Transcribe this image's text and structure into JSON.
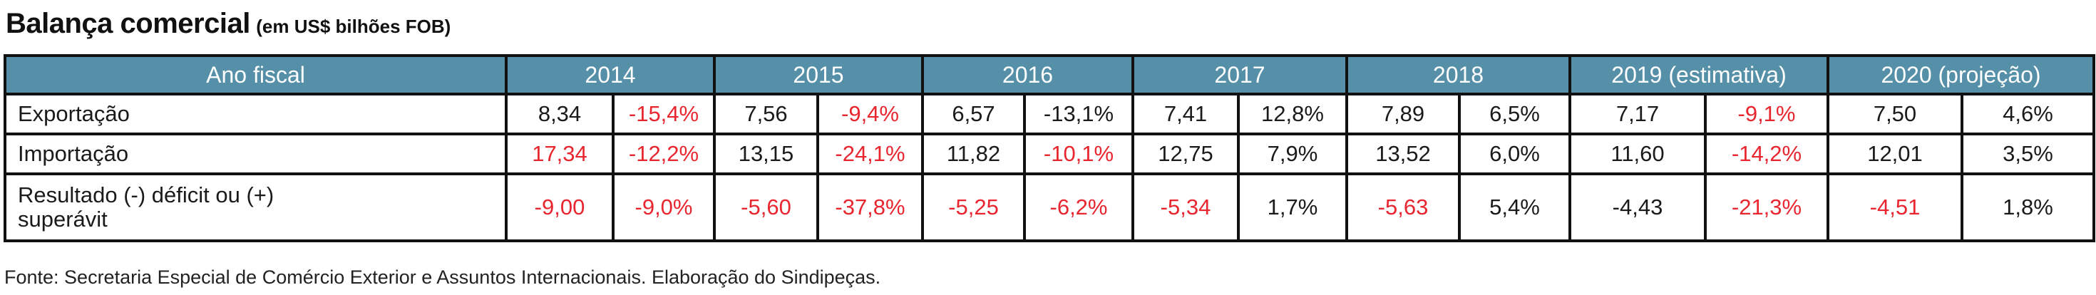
{
  "title": {
    "main": "Balança comercial",
    "sub": "(em US$ bilhões FOB)"
  },
  "table": {
    "header_label": "Ano fiscal",
    "years": [
      "2014",
      "2015",
      "2016",
      "2017",
      "2018",
      "2019 (estimativa)",
      "2020 (projeção)"
    ],
    "rows": [
      {
        "label": "Exportação",
        "cells": [
          {
            "value": "8,34",
            "neg": false
          },
          {
            "value": "-15,4%",
            "neg": true
          },
          {
            "value": "7,56",
            "neg": false
          },
          {
            "value": "-9,4%",
            "neg": true
          },
          {
            "value": "6,57",
            "neg": false
          },
          {
            "value": "-13,1%",
            "neg": false
          },
          {
            "value": "7,41",
            "neg": false
          },
          {
            "value": "12,8%",
            "neg": false
          },
          {
            "value": "7,89",
            "neg": false
          },
          {
            "value": "6,5%",
            "neg": false
          },
          {
            "value": "7,17",
            "neg": false
          },
          {
            "value": "-9,1%",
            "neg": true
          },
          {
            "value": "7,50",
            "neg": false
          },
          {
            "value": "4,6%",
            "neg": false
          }
        ]
      },
      {
        "label": "Importação",
        "cells": [
          {
            "value": "17,34",
            "neg": true
          },
          {
            "value": "-12,2%",
            "neg": true
          },
          {
            "value": "13,15",
            "neg": false
          },
          {
            "value": "-24,1%",
            "neg": true
          },
          {
            "value": "11,82",
            "neg": false
          },
          {
            "value": "-10,1%",
            "neg": true
          },
          {
            "value": "12,75",
            "neg": false
          },
          {
            "value": "7,9%",
            "neg": false
          },
          {
            "value": "13,52",
            "neg": false
          },
          {
            "value": "6,0%",
            "neg": false
          },
          {
            "value": "11,60",
            "neg": false
          },
          {
            "value": "-14,2%",
            "neg": true
          },
          {
            "value": "12,01",
            "neg": false
          },
          {
            "value": "3,5%",
            "neg": false
          }
        ]
      },
      {
        "label": "Resultado (-) déficit ou (+) superávit",
        "cells": [
          {
            "value": "-9,00",
            "neg": true
          },
          {
            "value": "-9,0%",
            "neg": true
          },
          {
            "value": "-5,60",
            "neg": true
          },
          {
            "value": "-37,8%",
            "neg": true
          },
          {
            "value": "-5,25",
            "neg": true
          },
          {
            "value": "-6,2%",
            "neg": true
          },
          {
            "value": "-5,34",
            "neg": true
          },
          {
            "value": "1,7%",
            "neg": false
          },
          {
            "value": "-5,63",
            "neg": true
          },
          {
            "value": "5,4%",
            "neg": false
          },
          {
            "value": "-4,43",
            "neg": false
          },
          {
            "value": "-21,3%",
            "neg": true
          },
          {
            "value": "-4,51",
            "neg": true
          },
          {
            "value": "1,8%",
            "neg": false
          }
        ]
      }
    ]
  },
  "colors": {
    "header_bg": "#5590a8",
    "negative": "#e8262f",
    "text": "#1a1a1a"
  },
  "footer": "Fonte: Secretaria Especial de Comércio Exterior e Assuntos Internacionais. Elaboração do Sindipeças."
}
